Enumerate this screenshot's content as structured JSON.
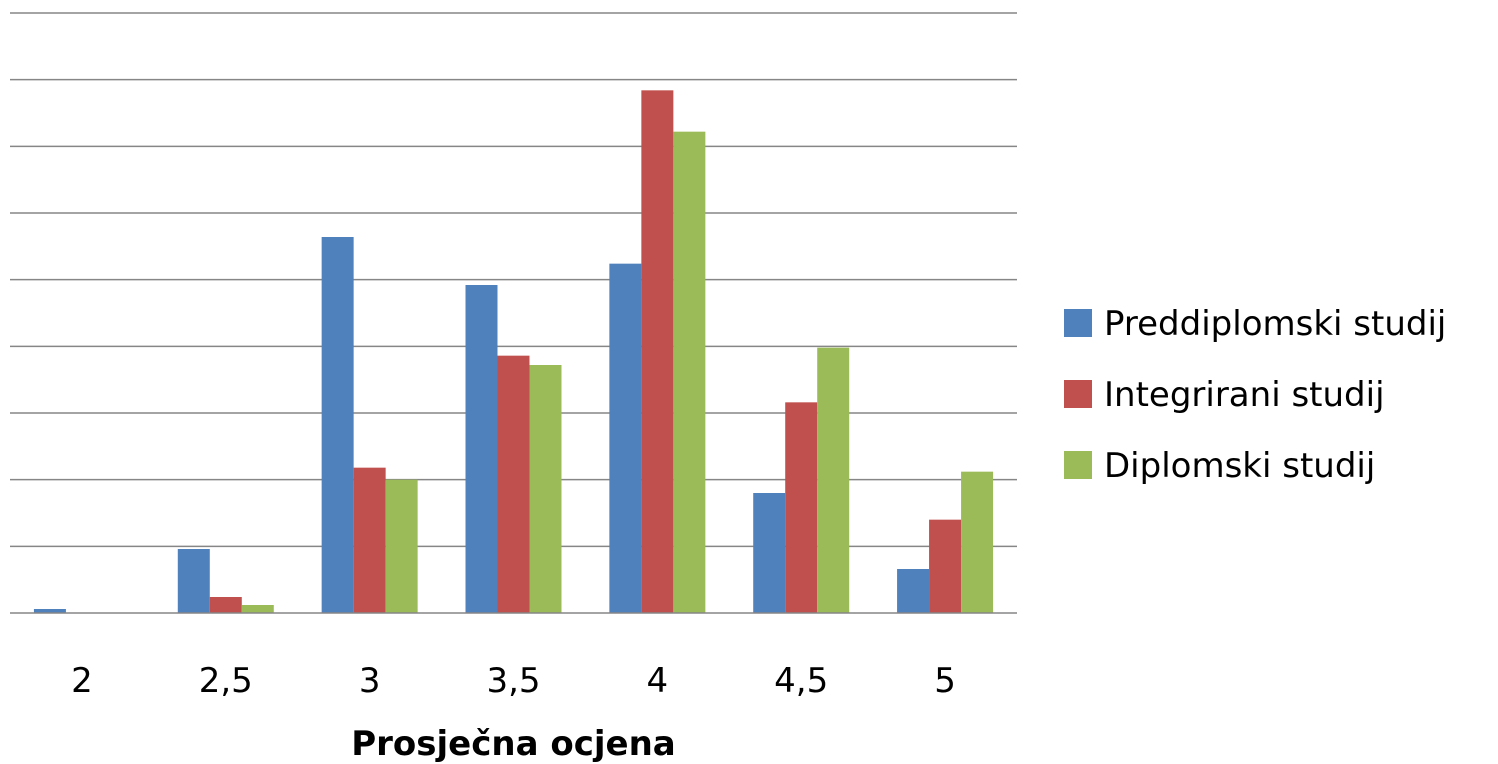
{
  "chart_data": {
    "type": "bar",
    "title": "",
    "xlabel": "Prosječna ocjena",
    "ylabel": "",
    "categories": [
      "2",
      "2,5",
      "3",
      "3,5",
      "4",
      "4,5",
      "5"
    ],
    "series": [
      {
        "name": "Preddiplomski studij",
        "color": "#4F81BD",
        "values": [
          0.3,
          4.8,
          28.2,
          24.6,
          26.2,
          9.0,
          3.3
        ]
      },
      {
        "name": "Integrirani studij",
        "color": "#C0504D",
        "values": [
          0.0,
          1.2,
          10.9,
          19.3,
          39.2,
          15.8,
          7.0
        ]
      },
      {
        "name": "Diplomski studij",
        "color": "#9BBB59",
        "values": [
          0.0,
          0.6,
          10.0,
          18.6,
          36.1,
          19.9,
          10.6
        ]
      }
    ],
    "ylim": [
      0,
      45
    ],
    "y_gridline_step": 5,
    "y_tick_labels_shown": false,
    "grid": true,
    "legend_position": "right"
  }
}
